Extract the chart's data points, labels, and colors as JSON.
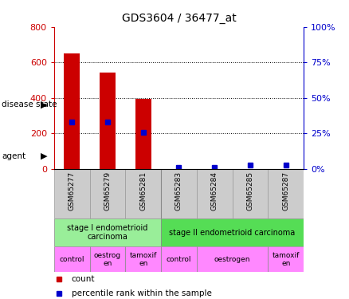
{
  "title": "GDS3604 / 36477_at",
  "samples": [
    "GSM65277",
    "GSM65279",
    "GSM65281",
    "GSM65283",
    "GSM65284",
    "GSM65285",
    "GSM65287"
  ],
  "count_values": [
    650,
    545,
    395,
    0,
    0,
    0,
    0
  ],
  "percentile_values": [
    33,
    33,
    26,
    1,
    1,
    3,
    3
  ],
  "ylim_left": [
    0,
    800
  ],
  "ylim_right": [
    0,
    100
  ],
  "yticks_left": [
    0,
    200,
    400,
    600,
    800
  ],
  "yticks_right": [
    0,
    25,
    50,
    75,
    100
  ],
  "bar_width": 0.45,
  "count_color": "#cc0000",
  "percentile_color": "#0000cc",
  "tick_bg_color": "#cccccc",
  "disease_state_labels": [
    {
      "text": "stage I endometrioid\ncarcinoma",
      "start": 0,
      "end": 3,
      "color": "#99ee99"
    },
    {
      "text": "stage II endometrioid carcinoma",
      "start": 3,
      "end": 7,
      "color": "#55dd55"
    }
  ],
  "agent_labels": [
    {
      "text": "control",
      "start": 0,
      "end": 1,
      "color": "#ff88ff"
    },
    {
      "text": "oestrog\nen",
      "start": 1,
      "end": 2,
      "color": "#ff88ff"
    },
    {
      "text": "tamoxif\nen",
      "start": 2,
      "end": 3,
      "color": "#ff88ff"
    },
    {
      "text": "control",
      "start": 3,
      "end": 4,
      "color": "#ff88ff"
    },
    {
      "text": "oestrogen",
      "start": 4,
      "end": 6,
      "color": "#ff88ff"
    },
    {
      "text": "tamoxif\nen",
      "start": 6,
      "end": 7,
      "color": "#ff88ff"
    }
  ],
  "disease_state_row_label": "disease state",
  "agent_row_label": "agent",
  "legend_count_label": "count",
  "legend_percentile_label": "percentile rank within the sample",
  "left_axis_color": "#cc0000",
  "right_axis_color": "#0000cc",
  "grid_yticks": [
    200,
    400,
    600
  ]
}
